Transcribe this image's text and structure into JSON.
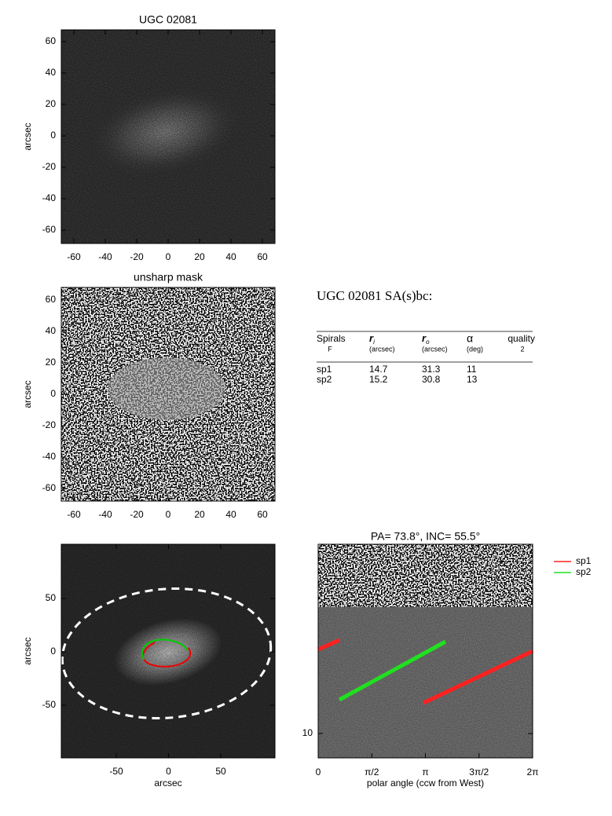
{
  "panels": [
    {
      "title": "UGC 02081",
      "ylabel": "arcsec",
      "xticks": [
        "-60",
        "-40",
        "-20",
        "0",
        "20",
        "40",
        "60"
      ],
      "yticks": [
        "60",
        "40",
        "20",
        "0",
        "-20",
        "-40",
        "-60"
      ]
    },
    {
      "title": "unsharp mask",
      "ylabel": "arcsec",
      "xticks": [
        "-60",
        "-40",
        "-20",
        "0",
        "20",
        "40",
        "60"
      ],
      "yticks": [
        "60",
        "40",
        "20",
        "0",
        "-20",
        "-40",
        "-60"
      ]
    },
    {
      "xlabel": "arcsec",
      "ylabel": "arcsec",
      "xticks": [
        "-50",
        "0",
        "50"
      ],
      "yticks": [
        "50",
        "0",
        "-50"
      ]
    },
    {
      "title": "PA=  73.8°, INC=  55.5°",
      "xlabel": "polar angle (ccw from West)",
      "xticks": [
        "0",
        "π/2",
        "π",
        "3π/2",
        "2π"
      ],
      "yticks": [
        "10"
      ]
    }
  ],
  "legend": [
    {
      "name": "sp1",
      "color": "#ff2020"
    },
    {
      "name": "sp2",
      "color": "#20e020"
    }
  ],
  "info": {
    "heading": "UGC 02081  SA(s)bc:",
    "columns": [
      {
        "name": "Spirals",
        "sub": "F"
      },
      {
        "name": "r",
        "index": "i",
        "sub": "(arcsec)"
      },
      {
        "name": "r",
        "index": "o",
        "sub": "(arcsec)"
      },
      {
        "name": "α",
        "sub": "(deg)"
      },
      {
        "name": "quality",
        "sub": "2"
      }
    ],
    "rows": [
      [
        "sp1",
        "14.7",
        "31.3",
        "11"
      ],
      [
        "sp2",
        "15.2",
        "30.8",
        "13"
      ]
    ]
  }
}
